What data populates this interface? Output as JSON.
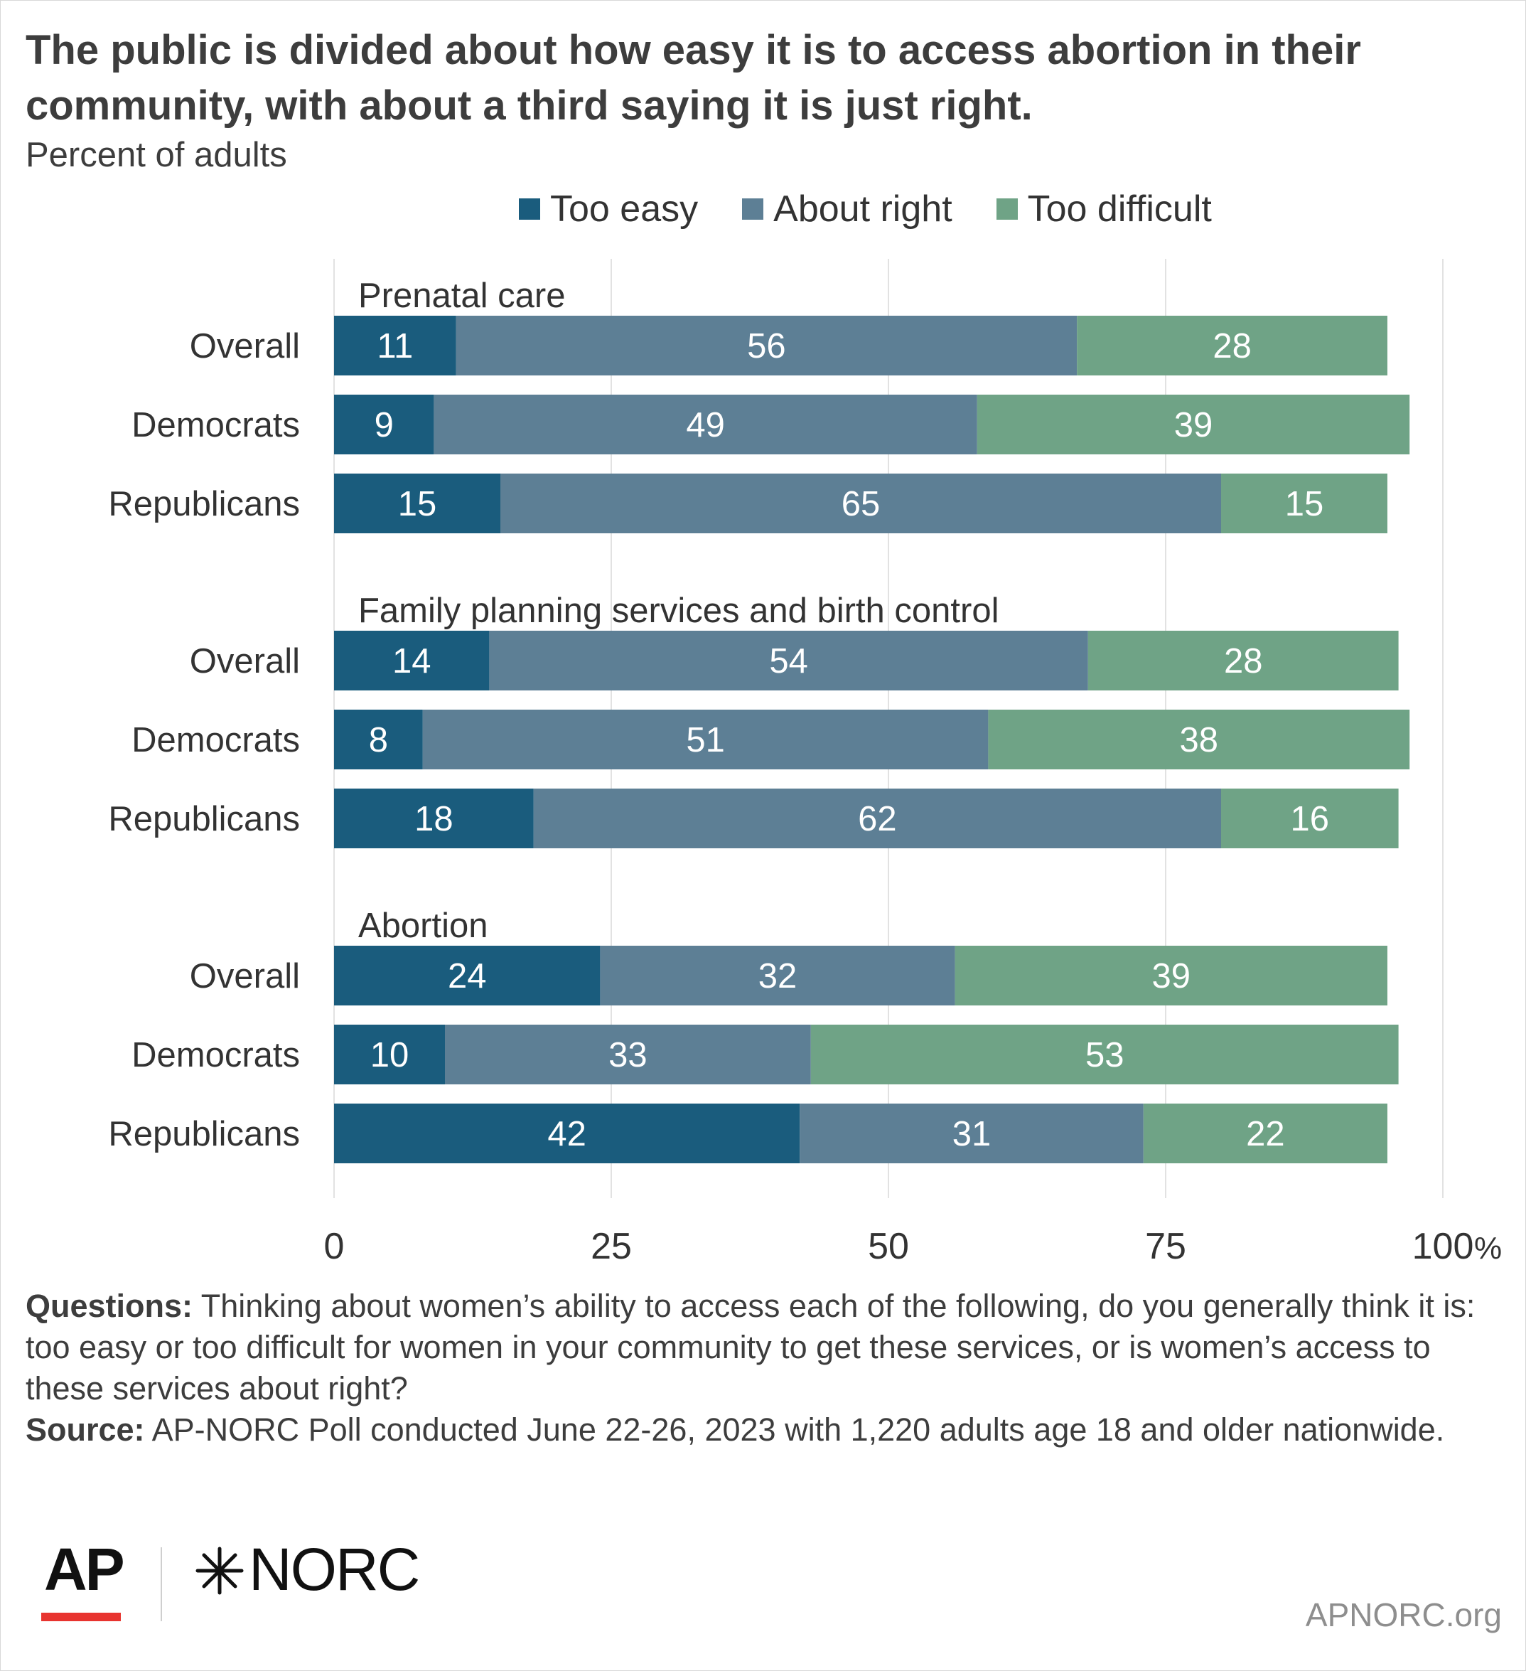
{
  "title": "The public is divided about how easy it is to access abortion in their community, with about a third saying it is just right.",
  "subtitle": "Percent of adults",
  "colors": {
    "too_easy": "#1a5c7d",
    "about_right": "#5d7f95",
    "too_difficult": "#6fa386",
    "gridline": "#e2e2e2",
    "label_text": "#ffffff"
  },
  "chart_data": {
    "type": "bar",
    "orientation": "horizontal",
    "stacked": true,
    "series_names": [
      "Too easy",
      "About right",
      "Too difficult"
    ],
    "legend_position": "top",
    "xlim": [
      0,
      100
    ],
    "x_ticks": [
      "0",
      "25",
      "50",
      "75",
      "100"
    ],
    "x_unit": "%",
    "grid": true,
    "groups": [
      {
        "label": "Prenatal care",
        "rows": [
          {
            "label": "Overall",
            "values": [
              11,
              56,
              28
            ]
          },
          {
            "label": "Democrats",
            "values": [
              9,
              49,
              39
            ]
          },
          {
            "label": "Republicans",
            "values": [
              15,
              65,
              15
            ]
          }
        ]
      },
      {
        "label": "Family planning services and birth control",
        "rows": [
          {
            "label": "Overall",
            "values": [
              14,
              54,
              28
            ]
          },
          {
            "label": "Democrats",
            "values": [
              8,
              51,
              38
            ]
          },
          {
            "label": "Republicans",
            "values": [
              18,
              62,
              16
            ]
          }
        ]
      },
      {
        "label": "Abortion",
        "rows": [
          {
            "label": "Overall",
            "values": [
              24,
              32,
              39
            ]
          },
          {
            "label": "Democrats",
            "values": [
              10,
              33,
              53
            ]
          },
          {
            "label": "Republicans",
            "values": [
              42,
              31,
              22
            ]
          }
        ]
      }
    ]
  },
  "notes": {
    "questions_label": "Questions:",
    "questions_text": " Thinking about women’s ability to access each of the following, do you generally think it is: too easy or too difficult for women in your community to get these services, or is women’s access to these services about right?",
    "source_label": "Source:",
    "source_text": " AP-NORC Poll conducted June 22-26, 2023 with 1,220 adults age 18 and older nationwide."
  },
  "footer": {
    "logo_ap": "AP",
    "logo_norc": "NORC",
    "site": "APNORC.org"
  }
}
